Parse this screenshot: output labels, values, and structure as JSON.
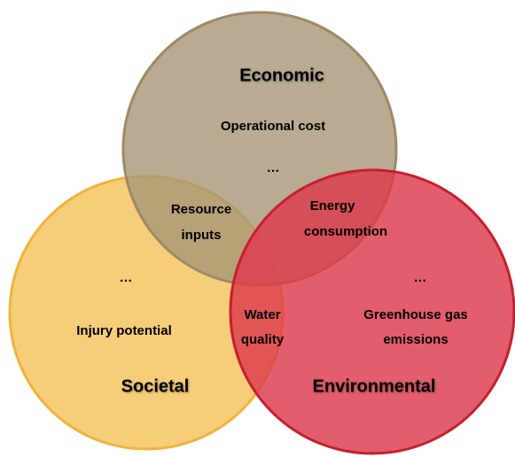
{
  "circles": [
    {
      "name": "Economic"
    },
    {
      "name": "Societal"
    },
    {
      "name": "Environmental"
    }
  ],
  "economic_only": [
    "Operational cost",
    "…"
  ],
  "societal_only": [
    "…",
    "Injury potential"
  ],
  "environmental_only": [
    "…",
    "Greenhouse gas",
    "emissions"
  ],
  "economic_societal": [
    "Resource",
    "inputs"
  ],
  "economic_environmental": [
    "Energy",
    "consumption"
  ],
  "societal_environmental": [
    "Water",
    "quality"
  ]
}
